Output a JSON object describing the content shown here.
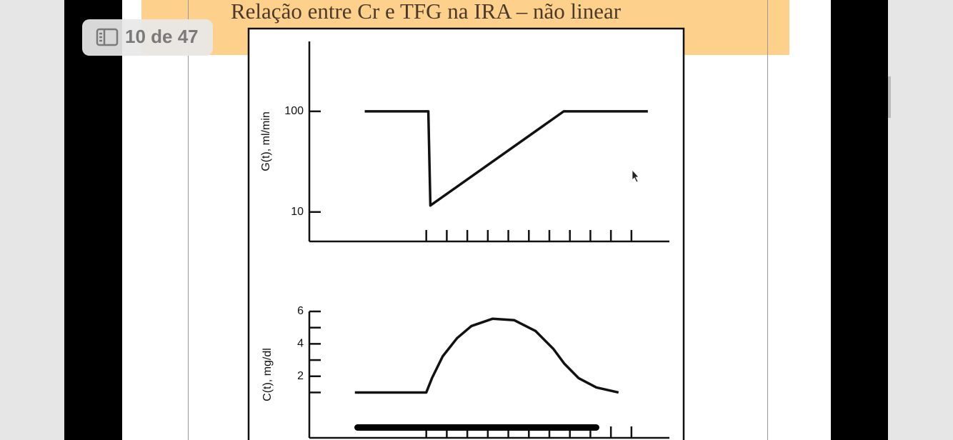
{
  "page_indicator": "10 de 47",
  "slide_title": "Relação entre Cr e TFG na IRA – não linear",
  "chart_data": [
    {
      "type": "line",
      "ylabel": "G(t), ml/min",
      "log_y": true,
      "x": [
        -2,
        1.1,
        1.2,
        7.7,
        11.8
      ],
      "values": [
        100,
        100,
        11.6,
        100,
        100
      ],
      "color": "#111111",
      "xlim": [
        -4.7,
        12.85
      ],
      "xticks": [
        1,
        2,
        3,
        4,
        5,
        6,
        7,
        8,
        9,
        10,
        11
      ],
      "ylim": [
        5.1,
        495
      ],
      "yticks": [
        10,
        100
      ]
    },
    {
      "type": "line",
      "ylabel": "C(t), mg/dl",
      "log_y": false,
      "x": [
        -2.48,
        1.0,
        1.28,
        1.8,
        2.5,
        3.2,
        4.24,
        5.29,
        6.33,
        7.2,
        7.72,
        8.42,
        9.29,
        10.37
      ],
      "values": [
        1.0,
        1.0,
        1.89,
        3.23,
        4.35,
        5.1,
        5.55,
        5.46,
        4.79,
        3.68,
        2.79,
        1.89,
        1.31,
        1.0
      ],
      "color": "#111111",
      "xlim": [
        -4.7,
        12.85
      ],
      "xticks": [
        1,
        2,
        3,
        4,
        5,
        6,
        7,
        8,
        9,
        10,
        11
      ],
      "ylim": [
        -1.8,
        6
      ],
      "yticks": [
        2,
        4,
        6
      ],
      "yminorticks": [
        1,
        3,
        5
      ]
    }
  ]
}
